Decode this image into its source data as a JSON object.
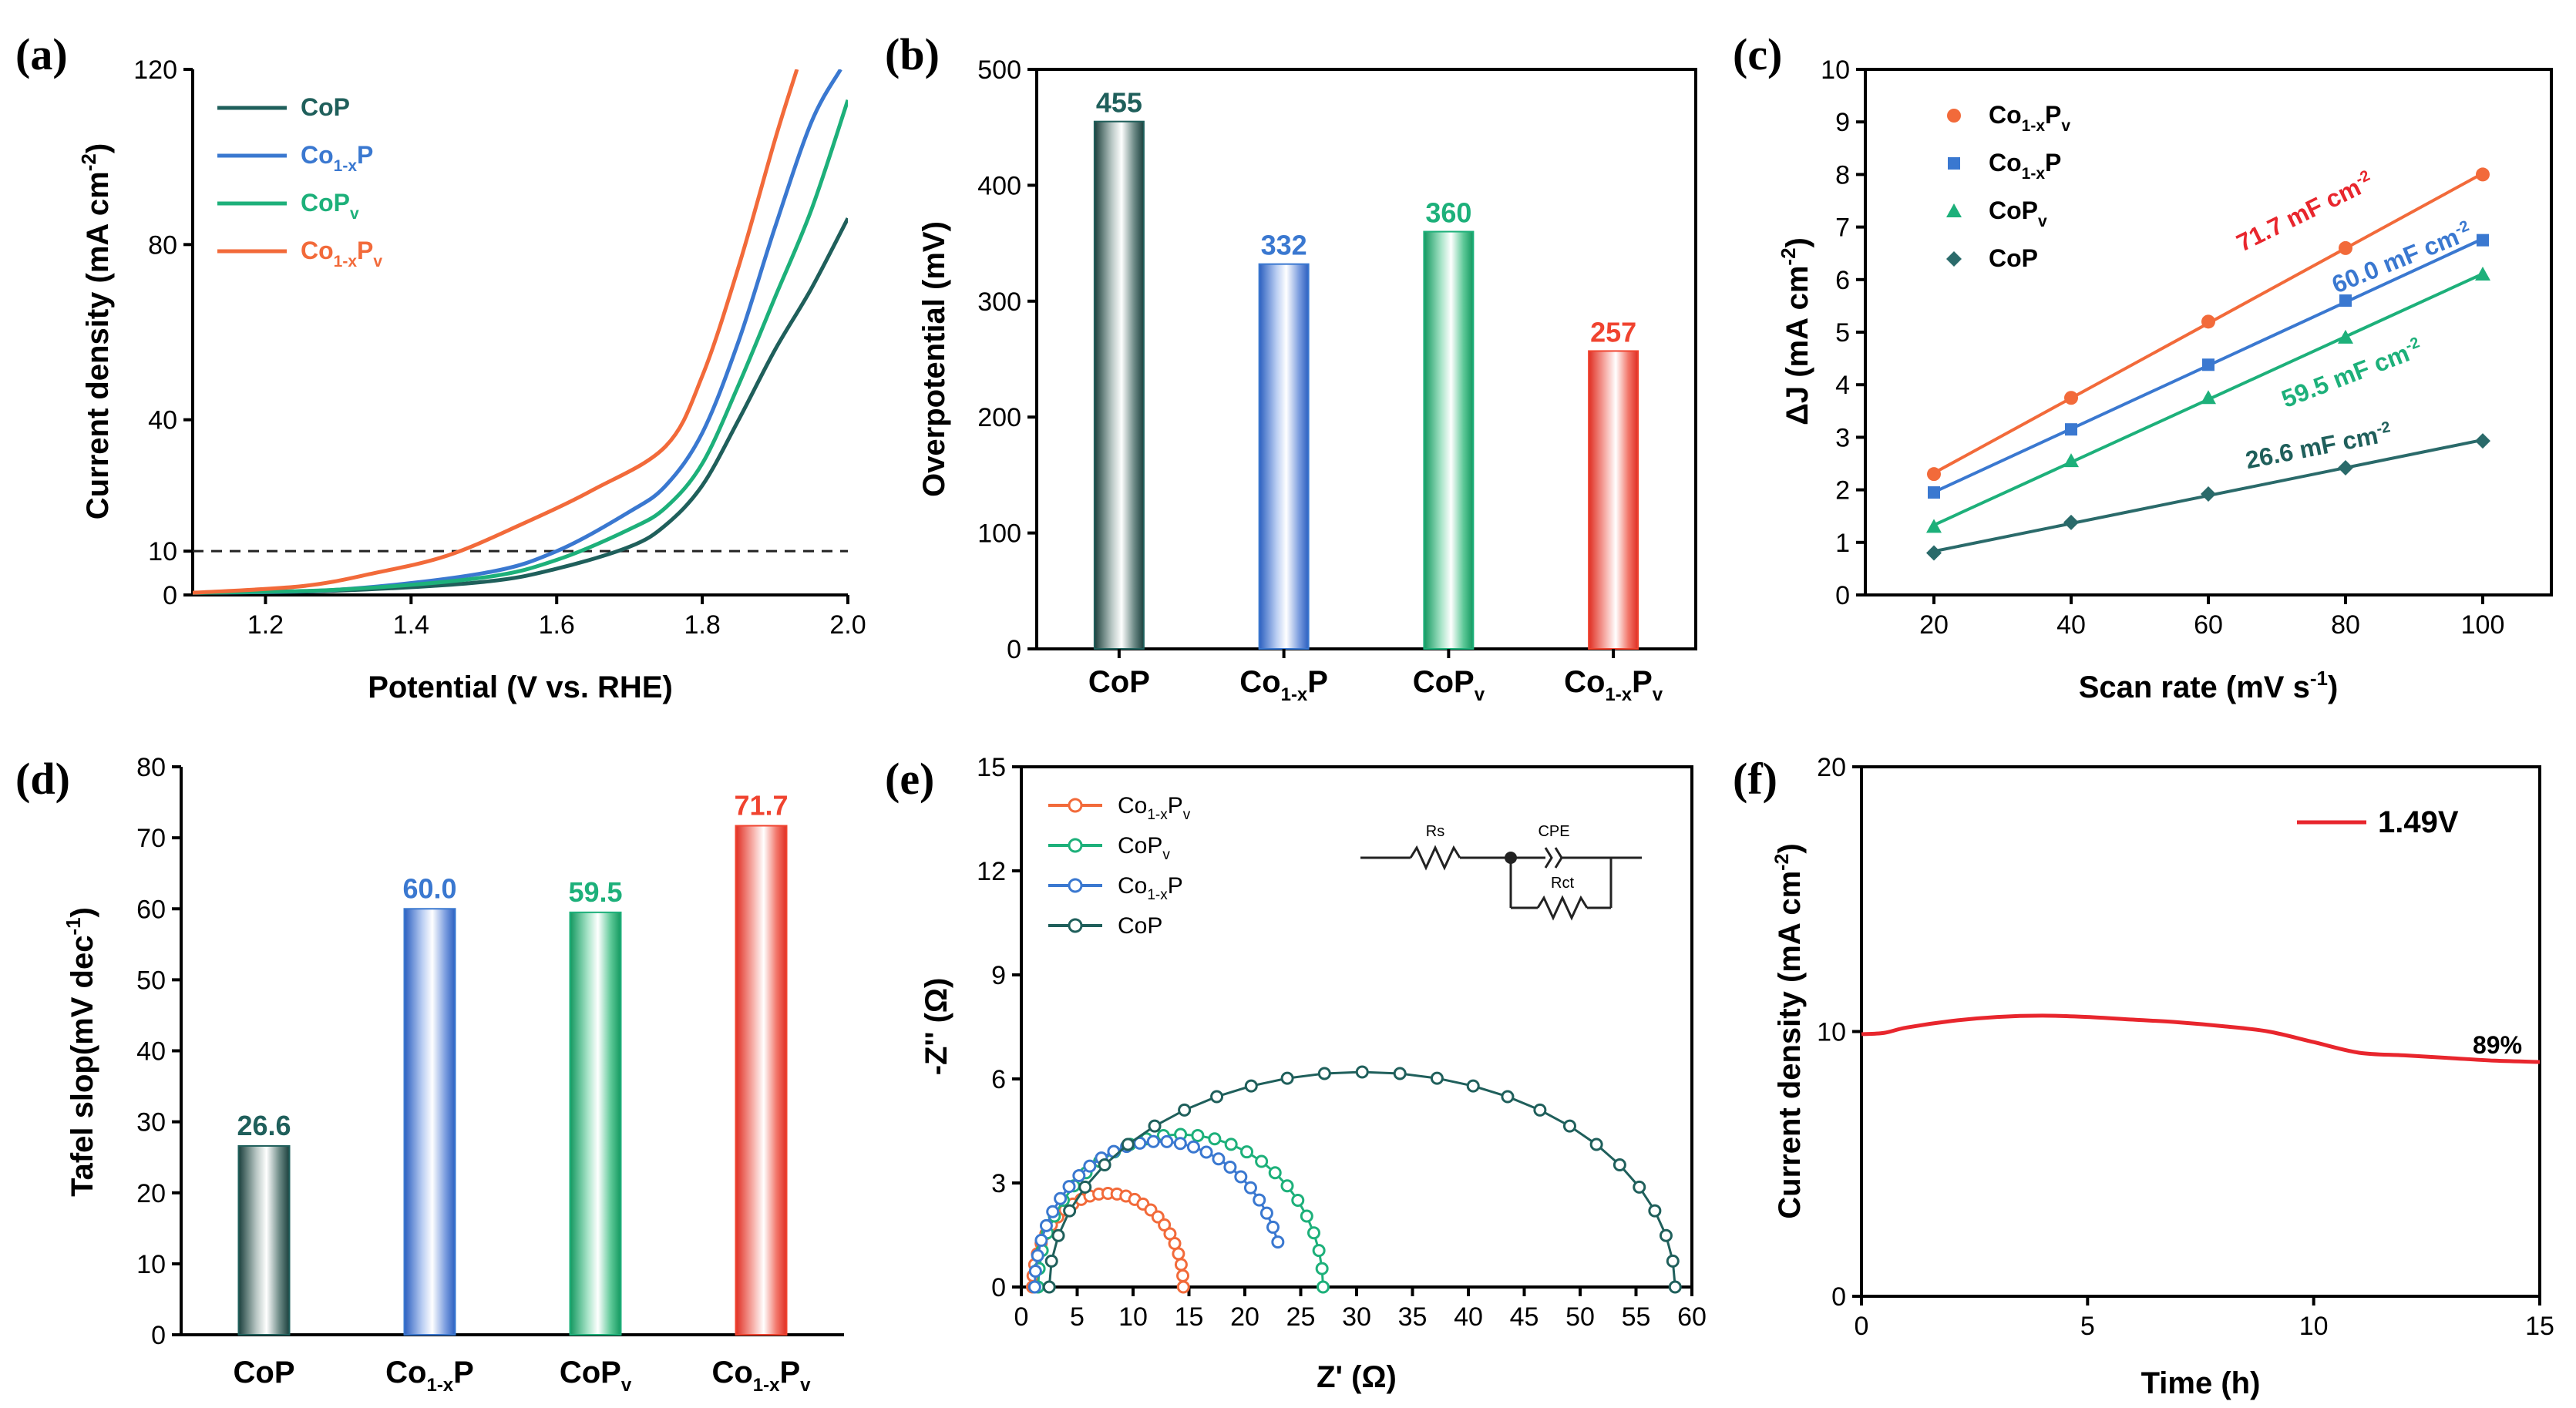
{
  "chart_data": [
    {
      "id": "a",
      "panel_label": "(a)",
      "type": "line",
      "xlabel": "Potential (V vs. RHE)",
      "ylabel": "Current density (mA cm",
      "ylabel_sup": "-2",
      "ylabel_end": ")",
      "xlim": [
        1.1,
        2.0
      ],
      "ylim": [
        0,
        120
      ],
      "xticks": [
        1.2,
        1.4,
        1.6,
        1.8,
        2.0
      ],
      "xtick_labels": [
        "1.2",
        "1.4",
        "1.6",
        "1.8",
        "2.0"
      ],
      "yticks": [
        0,
        10,
        40,
        80,
        120
      ],
      "ytick_labels": [
        "0",
        "10",
        "40",
        "80",
        "120"
      ],
      "reference_line": 10,
      "series": [
        {
          "name": "CoP",
          "sub": "",
          "v": "",
          "color": "#1f5f5b",
          "x": [
            1.1,
            1.3,
            1.5,
            1.6,
            1.7,
            1.75,
            1.8,
            1.85,
            1.9,
            1.95,
            2.0
          ],
          "y": [
            0.5,
            1,
            3,
            6,
            11,
            16,
            25,
            40,
            56,
            70,
            86
          ]
        },
        {
          "name": "Co",
          "sub": "1-x",
          "after": "P",
          "v": "",
          "color": "#3a78d0",
          "x": [
            1.1,
            1.3,
            1.5,
            1.6,
            1.7,
            1.75,
            1.8,
            1.85,
            1.9,
            1.95,
            1.99
          ],
          "y": [
            0.5,
            1.2,
            5,
            10,
            19,
            25,
            37,
            58,
            84,
            108,
            120
          ]
        },
        {
          "name": "CoP",
          "sub": "v",
          "v": "",
          "color": "#1db07a",
          "x": [
            1.1,
            1.3,
            1.5,
            1.6,
            1.7,
            1.75,
            1.8,
            1.85,
            1.9,
            1.95,
            2.0
          ],
          "y": [
            0.5,
            1.2,
            4,
            8,
            15,
            20,
            30,
            48,
            68,
            88,
            113
          ]
        },
        {
          "name": "Co",
          "sub": "1-x",
          "after": "P",
          "v": "v",
          "color": "#f26a3a",
          "x": [
            1.1,
            1.25,
            1.35,
            1.45,
            1.55,
            1.65,
            1.75,
            1.8,
            1.85,
            1.9,
            1.93
          ],
          "y": [
            0.5,
            2,
            5,
            9,
            16,
            24,
            34,
            50,
            75,
            104,
            120
          ]
        }
      ]
    },
    {
      "id": "b",
      "panel_label": "(b)",
      "type": "bar",
      "ylabel": "Overpotential (mV)",
      "ylim": [
        0,
        500
      ],
      "yticks": [
        0,
        100,
        200,
        300,
        400,
        500
      ],
      "ytick_labels": [
        "0",
        "100",
        "200",
        "300",
        "400",
        "500"
      ],
      "categories": [
        {
          "main": "CoP",
          "sub": "",
          "after": "",
          "v": ""
        },
        {
          "main": "Co",
          "sub": "1-x",
          "after": "P",
          "v": ""
        },
        {
          "main": "CoP",
          "sub": "v",
          "after": "",
          "v": ""
        },
        {
          "main": "Co",
          "sub": "1-x",
          "after": "P",
          "v": "v"
        }
      ],
      "values": [
        455,
        332,
        360,
        257
      ],
      "value_labels": [
        "455",
        "332",
        "360",
        "257"
      ],
      "colors": [
        "#1f5f5b",
        "#3a78d0",
        "#1db07a",
        "#f0432f"
      ]
    },
    {
      "id": "c",
      "panel_label": "(c)",
      "type": "scatter",
      "xlabel": "Scan rate (mV s",
      "xlabel_sup": "-1",
      "xlabel_end": ")",
      "ylabel": "ΔJ (mA cm",
      "ylabel_sup": "-2",
      "ylabel_end": ")",
      "xlim": [
        10,
        110
      ],
      "ylim": [
        0,
        10
      ],
      "xticks": [
        20,
        40,
        60,
        80,
        100
      ],
      "xtick_labels": [
        "20",
        "40",
        "60",
        "80",
        "100"
      ],
      "yticks": [
        0,
        1,
        2,
        3,
        4,
        5,
        6,
        7,
        8,
        9,
        10
      ],
      "ytick_labels": [
        "0",
        "1",
        "2",
        "3",
        "4",
        "5",
        "6",
        "7",
        "8",
        "9",
        "10"
      ],
      "series": [
        {
          "legend_main": "Co",
          "legend_sub": "1-x",
          "legend_after": "P",
          "legend_v": "v",
          "marker": "circle",
          "color": "#f26a3a",
          "x": [
            20,
            40,
            60,
            80,
            100
          ],
          "y": [
            2.3,
            3.75,
            5.2,
            6.6,
            8.0
          ],
          "annotation": "71.7 mF cm",
          "annotation_sup": "-2",
          "annotation_color": "#e8262d"
        },
        {
          "legend_main": "Co",
          "legend_sub": "1-x",
          "legend_after": "P",
          "legend_v": "",
          "marker": "square",
          "color": "#3a78d0",
          "x": [
            20,
            40,
            60,
            80,
            100
          ],
          "y": [
            1.95,
            3.15,
            4.38,
            5.6,
            6.75
          ],
          "annotation": "60.0 mF cm",
          "annotation_sup": "-2",
          "annotation_color": "#3a78d0"
        },
        {
          "legend_main": "CoP",
          "legend_sub": "v",
          "legend_after": "",
          "legend_v": "",
          "marker": "triangle",
          "color": "#1db07a",
          "x": [
            20,
            40,
            60,
            80,
            100
          ],
          "y": [
            1.3,
            2.55,
            3.75,
            4.9,
            6.1
          ],
          "annotation": "59.5 mF cm",
          "annotation_sup": "-2",
          "annotation_color": "#1db07a"
        },
        {
          "legend_main": "CoP",
          "legend_sub": "",
          "legend_after": "",
          "legend_v": "",
          "marker": "diamond",
          "color": "#2a6a6a",
          "x": [
            20,
            40,
            60,
            80,
            100
          ],
          "y": [
            0.8,
            1.38,
            1.92,
            2.42,
            2.93
          ],
          "annotation": "26.6 mF cm",
          "annotation_sup": "-2",
          "annotation_color": "#1f5f5b"
        }
      ]
    },
    {
      "id": "d",
      "panel_label": "(d)",
      "type": "bar",
      "ylabel": "Tafel slop(mV dec",
      "ylabel_sup": "-1",
      "ylabel_end": ")",
      "ylim": [
        0,
        80
      ],
      "yticks": [
        0,
        10,
        20,
        30,
        40,
        50,
        60,
        70,
        80
      ],
      "ytick_labels": [
        "0",
        "10",
        "20",
        "30",
        "40",
        "50",
        "60",
        "70",
        "80"
      ],
      "categories": [
        {
          "main": "CoP",
          "sub": "",
          "after": "",
          "v": ""
        },
        {
          "main": "Co",
          "sub": "1-x",
          "after": "P",
          "v": ""
        },
        {
          "main": "CoP",
          "sub": "v",
          "after": "",
          "v": ""
        },
        {
          "main": "Co",
          "sub": "1-x",
          "after": "P",
          "v": "v"
        }
      ],
      "values": [
        26.6,
        60.0,
        59.5,
        71.7
      ],
      "value_labels": [
        "26.6",
        "60.0",
        "59.5",
        "71.7"
      ],
      "colors": [
        "#1f5f5b",
        "#3a78d0",
        "#1db07a",
        "#f0432f"
      ]
    },
    {
      "id": "e",
      "panel_label": "(e)",
      "type": "scatter",
      "xlabel": "Z' (Ω)",
      "ylabel": "-Z'' (Ω)",
      "xlim": [
        0,
        60
      ],
      "ylim": [
        0,
        15
      ],
      "xticks": [
        0,
        5,
        10,
        15,
        20,
        25,
        30,
        35,
        40,
        45,
        50,
        55,
        60
      ],
      "xtick_labels": [
        "0",
        "5",
        "10",
        "15",
        "20",
        "25",
        "30",
        "35",
        "40",
        "45",
        "50",
        "55",
        "60"
      ],
      "yticks": [
        0,
        3,
        6,
        9,
        12,
        15
      ],
      "ytick_labels": [
        "0",
        "3",
        "6",
        "9",
        "12",
        "15"
      ],
      "series": [
        {
          "legend_main": "Co",
          "legend_sub": "1-x",
          "legend_after": "P",
          "legend_v": "v",
          "color": "#f26a3a",
          "r0": 1.0,
          "r1": 14.5,
          "peak": 2.7
        },
        {
          "legend_main": "CoP",
          "legend_sub": "v",
          "legend_after": "",
          "legend_v": "",
          "color": "#1db07a",
          "r0": 1.5,
          "r1": 27.0,
          "peak": 4.4
        },
        {
          "legend_main": "Co",
          "legend_sub": "1-x",
          "legend_after": "P",
          "legend_v": "",
          "color": "#3a78d0",
          "r0": 1.2,
          "r1": 23.5,
          "peak": 4.2,
          "cutoff": 0.05
        },
        {
          "legend_main": "CoP",
          "legend_sub": "",
          "legend_after": "",
          "legend_v": "",
          "color": "#1f5f5b",
          "r0": 2.5,
          "r1": 58.5,
          "peak": 6.2
        }
      ],
      "circuit_labels": {
        "rs": "Rs",
        "cpe": "CPE",
        "rct": "Rct"
      }
    },
    {
      "id": "f",
      "panel_label": "(f)",
      "type": "line",
      "xlabel": "Time (h)",
      "ylabel": "Current density (mA cm",
      "ylabel_sup": "-2",
      "ylabel_end": ")",
      "xlim": [
        0,
        15
      ],
      "ylim": [
        0,
        20
      ],
      "xticks": [
        0,
        5,
        10,
        15
      ],
      "xtick_labels": [
        "0",
        "5",
        "10",
        "15"
      ],
      "yticks": [
        0,
        10,
        20
      ],
      "ytick_labels": [
        "0",
        "10",
        "20"
      ],
      "series": [
        {
          "name": "1.49V",
          "color": "#e8262d",
          "x": [
            0,
            0.5,
            1,
            2,
            3,
            4,
            5,
            6,
            7,
            8,
            9,
            10,
            11,
            12,
            13,
            14,
            15
          ],
          "y": [
            9.9,
            9.95,
            10.15,
            10.4,
            10.55,
            10.6,
            10.55,
            10.45,
            10.35,
            10.2,
            10.0,
            9.6,
            9.2,
            9.1,
            9.0,
            8.9,
            8.85
          ]
        }
      ],
      "annotation": "89%"
    }
  ]
}
